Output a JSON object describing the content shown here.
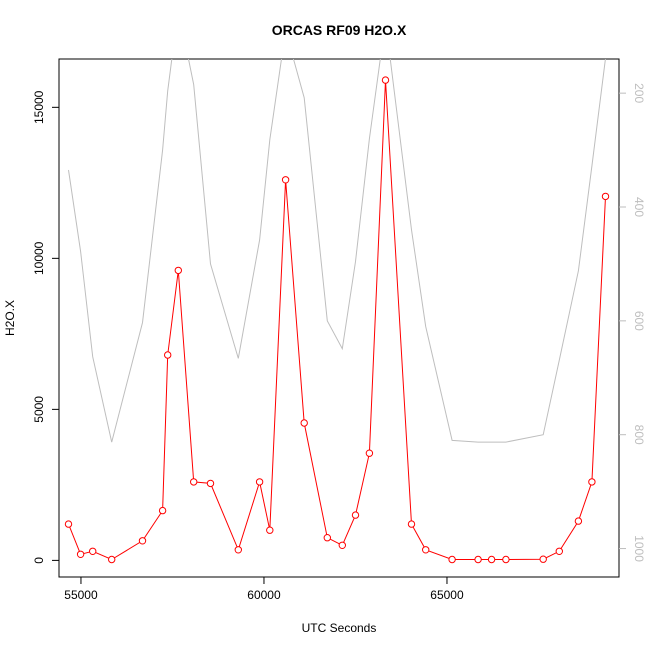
{
  "chart_data": {
    "type": "line",
    "title": "ORCAS RF09 H2O.X",
    "xlabel": "UTC Seconds",
    "ylabel": "H2O.X",
    "y2label": "",
    "xlim": [
      54400,
      69700
    ],
    "ylim": [
      -550,
      16600
    ],
    "y2lim": [
      1050,
      140
    ],
    "y2_reversed": true,
    "grid": false,
    "x_ticks": [
      55000,
      60000,
      65000
    ],
    "y_ticks": [
      0,
      5000,
      10000,
      15000
    ],
    "y2_ticks": [
      200,
      400,
      600,
      800,
      1000
    ],
    "series": [
      {
        "axis": "left",
        "color": "#ff0000",
        "markers": true,
        "x": [
          54660,
          54990,
          55320,
          55840,
          56680,
          57230,
          57370,
          57660,
          58080,
          58540,
          59300,
          59880,
          60160,
          60590,
          61100,
          61730,
          62140,
          62500,
          62880,
          63320,
          64030,
          64420,
          65140,
          65850,
          66220,
          66610,
          67630,
          68070,
          68590,
          68960,
          69330
        ],
        "values": [
          1200,
          200,
          300,
          30,
          650,
          1650,
          6800,
          9600,
          2600,
          2550,
          350,
          2600,
          1000,
          12600,
          4550,
          750,
          500,
          1500,
          3550,
          15900,
          1200,
          350,
          30,
          30,
          30,
          30,
          40,
          300,
          1300,
          2600,
          12050
        ]
      },
      {
        "axis": "right",
        "color": "#bebebe",
        "markers": false,
        "x": [
          54660,
          54990,
          55320,
          55840,
          56680,
          57230,
          57370,
          57660,
          58080,
          58540,
          59300,
          59880,
          60160,
          60590,
          61100,
          61730,
          62140,
          62500,
          62880,
          63320,
          64030,
          64420,
          65140,
          65850,
          66220,
          66610,
          67630,
          68070,
          68590,
          68960,
          69330
        ],
        "values": [
          335,
          478,
          663,
          813,
          603,
          300,
          196,
          52,
          185,
          500,
          666,
          458,
          282,
          90,
          208,
          600,
          649,
          496,
          280,
          73,
          440,
          610,
          810,
          813,
          813,
          813,
          800,
          669,
          512,
          328,
          139
        ]
      }
    ]
  }
}
